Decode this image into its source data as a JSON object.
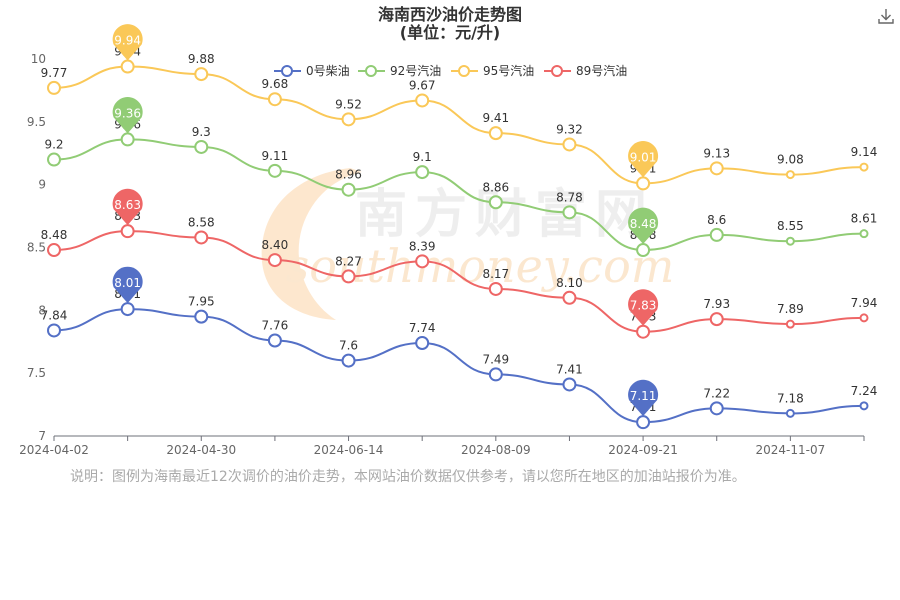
{
  "chart_data": {
    "type": "line",
    "title": "海南西沙油价走势图",
    "subtitle": "(单位：元/升)",
    "ylim": [
      7,
      10
    ],
    "yticks": [
      7,
      7.5,
      8,
      8.5,
      9,
      9.5,
      10
    ],
    "ytick_labels": [
      "7",
      "7.5",
      "8",
      "8.5",
      "9",
      "9.5",
      "10"
    ],
    "x_tick_labels": [
      "2024-04-02",
      "2024-04-30",
      "2024-06-14",
      "2024-08-09",
      "2024-09-21",
      "2024-11-07"
    ],
    "legend_position": "top",
    "series": [
      {
        "name": "0号柴油",
        "color": "#5470c6",
        "values": [
          7.84,
          8.01,
          7.95,
          7.76,
          7.6,
          7.74,
          7.49,
          7.41,
          7.11,
          7.22,
          7.18,
          7.24
        ],
        "labels": [
          "7.84",
          "8.01",
          "7.95",
          "7.76",
          "7.6",
          "7.74",
          "7.49",
          "7.41",
          "7.11",
          "7.22",
          "7.18",
          "7.24"
        ],
        "max_pin": "8.01",
        "min_pin": "7.11"
      },
      {
        "name": "92号汽油",
        "color": "#91cc75",
        "values": [
          9.2,
          9.36,
          9.3,
          9.11,
          8.96,
          9.1,
          8.86,
          8.78,
          8.48,
          8.6,
          8.55,
          8.61
        ],
        "labels": [
          "9.2",
          "9.36",
          "9.3",
          "9.11",
          "8.96",
          "9.1",
          "8.86",
          "8.78",
          "8.48",
          "8.6",
          "8.55",
          "8.61"
        ],
        "max_pin": "9.36",
        "min_pin": "8.48"
      },
      {
        "name": "95号汽油",
        "color": "#fac858",
        "values": [
          9.77,
          9.94,
          9.88,
          9.68,
          9.52,
          9.67,
          9.41,
          9.32,
          9.01,
          9.13,
          9.08,
          9.14
        ],
        "labels": [
          "9.77",
          "9.94",
          "9.88",
          "9.68",
          "9.52",
          "9.67",
          "9.41",
          "9.32",
          "9.01",
          "9.13",
          "9.08",
          "9.14"
        ],
        "max_pin": "9.94",
        "min_pin": "9.01"
      },
      {
        "name": "89号汽油",
        "color": "#ee6666",
        "values": [
          8.48,
          8.63,
          8.58,
          8.4,
          8.27,
          8.39,
          8.17,
          8.1,
          7.83,
          7.93,
          7.89,
          7.94
        ],
        "labels": [
          "8.48",
          "8.63",
          "8.58",
          "8.40",
          "8.27",
          "8.39",
          "8.17",
          "8.10",
          "7.83",
          "7.93",
          "7.89",
          "7.94"
        ],
        "max_pin": "8.63",
        "min_pin": "7.83"
      }
    ]
  },
  "watermark": {
    "cn": "南方财富网",
    "en": "southmoney.com"
  },
  "note": "说明：图例为海南最近12次调价的油价走势，本网站油价数据仅供参考，请以您所在地区的加油站报价为准。",
  "icons": {
    "download": "download-icon"
  }
}
